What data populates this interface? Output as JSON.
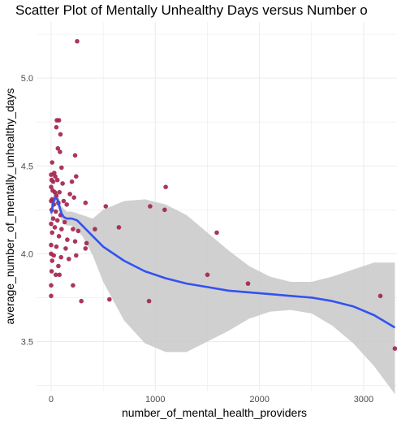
{
  "chart_data": {
    "type": "scatter",
    "title": "Scatter Plot of Mentally Unhealthy Days versus Number o",
    "xlabel": "number_of_mental_health_providers",
    "ylabel": "average_number_of_mentally_unhealthy_days",
    "xlim": [
      -140,
      3320
    ],
    "ylim": [
      3.22,
      5.32
    ],
    "x_ticks": [
      0,
      1000,
      2000,
      3000
    ],
    "x_tick_labels": [
      "0",
      "1000",
      "2000",
      "3000"
    ],
    "y_ticks": [
      3.5,
      4.0,
      4.5,
      5.0
    ],
    "y_tick_labels": [
      "3.5",
      "4.0",
      "4.5",
      "5.0"
    ],
    "grid": true,
    "colors": {
      "points": "#a3254f",
      "smooth": "#3352f0",
      "band": "#c8c8c8",
      "grid": "#ebebeb"
    },
    "points": [
      {
        "x": 250,
        "y": 5.21
      },
      {
        "x": 55,
        "y": 4.76
      },
      {
        "x": 75,
        "y": 4.76
      },
      {
        "x": 50,
        "y": 4.72
      },
      {
        "x": 90,
        "y": 4.68
      },
      {
        "x": 65,
        "y": 4.6
      },
      {
        "x": 85,
        "y": 4.58
      },
      {
        "x": 230,
        "y": 4.56
      },
      {
        "x": 10,
        "y": 4.52
      },
      {
        "x": 100,
        "y": 4.49
      },
      {
        "x": 30,
        "y": 4.46
      },
      {
        "x": 0,
        "y": 4.45
      },
      {
        "x": 5,
        "y": 4.42
      },
      {
        "x": 20,
        "y": 4.41
      },
      {
        "x": 40,
        "y": 4.44
      },
      {
        "x": 60,
        "y": 4.42
      },
      {
        "x": 110,
        "y": 4.4
      },
      {
        "x": 200,
        "y": 4.41
      },
      {
        "x": 240,
        "y": 4.44
      },
      {
        "x": 0,
        "y": 4.38
      },
      {
        "x": 15,
        "y": 4.36
      },
      {
        "x": 35,
        "y": 4.35
      },
      {
        "x": 80,
        "y": 4.35
      },
      {
        "x": 50,
        "y": 4.33
      },
      {
        "x": 10,
        "y": 4.31
      },
      {
        "x": 1100,
        "y": 4.38
      },
      {
        "x": 180,
        "y": 4.34
      },
      {
        "x": 220,
        "y": 4.32
      },
      {
        "x": 0,
        "y": 4.3
      },
      {
        "x": 25,
        "y": 4.28
      },
      {
        "x": 70,
        "y": 4.29
      },
      {
        "x": 120,
        "y": 4.3
      },
      {
        "x": 150,
        "y": 4.28
      },
      {
        "x": 330,
        "y": 4.29
      },
      {
        "x": 525,
        "y": 4.27
      },
      {
        "x": 950,
        "y": 4.27
      },
      {
        "x": 1090,
        "y": 4.25
      },
      {
        "x": 5,
        "y": 4.25
      },
      {
        "x": 45,
        "y": 4.24
      },
      {
        "x": 90,
        "y": 4.22
      },
      {
        "x": 20,
        "y": 4.2
      },
      {
        "x": 60,
        "y": 4.19
      },
      {
        "x": 130,
        "y": 4.18
      },
      {
        "x": 0,
        "y": 4.17
      },
      {
        "x": 35,
        "y": 4.15
      },
      {
        "x": 100,
        "y": 4.14
      },
      {
        "x": 210,
        "y": 4.14
      },
      {
        "x": 260,
        "y": 4.13
      },
      {
        "x": 420,
        "y": 4.14
      },
      {
        "x": 650,
        "y": 4.15
      },
      {
        "x": 1590,
        "y": 4.12
      },
      {
        "x": 10,
        "y": 4.12
      },
      {
        "x": 75,
        "y": 4.1
      },
      {
        "x": 155,
        "y": 4.08
      },
      {
        "x": 230,
        "y": 4.07
      },
      {
        "x": 340,
        "y": 4.06
      },
      {
        "x": 0,
        "y": 4.05
      },
      {
        "x": 50,
        "y": 4.04
      },
      {
        "x": 140,
        "y": 4.03
      },
      {
        "x": 330,
        "y": 4.03
      },
      {
        "x": 0,
        "y": 4.0
      },
      {
        "x": 25,
        "y": 3.99
      },
      {
        "x": 95,
        "y": 3.98
      },
      {
        "x": 170,
        "y": 3.97
      },
      {
        "x": 240,
        "y": 3.99
      },
      {
        "x": 10,
        "y": 3.96
      },
      {
        "x": 70,
        "y": 3.93
      },
      {
        "x": 5,
        "y": 3.9
      },
      {
        "x": 45,
        "y": 3.88
      },
      {
        "x": 80,
        "y": 3.88
      },
      {
        "x": 1500,
        "y": 3.88
      },
      {
        "x": 0,
        "y": 3.82
      },
      {
        "x": 210,
        "y": 3.82
      },
      {
        "x": 1890,
        "y": 3.83
      },
      {
        "x": 0,
        "y": 3.76
      },
      {
        "x": 560,
        "y": 3.74
      },
      {
        "x": 290,
        "y": 3.73
      },
      {
        "x": 940,
        "y": 3.73
      },
      {
        "x": 3160,
        "y": 3.76
      },
      {
        "x": 3300,
        "y": 3.46
      }
    ],
    "smooth_line": {
      "x": [
        0,
        20,
        40,
        60,
        80,
        100,
        120,
        150,
        200,
        250,
        300,
        400,
        500,
        700,
        900,
        1100,
        1300,
        1500,
        1700,
        1900,
        2100,
        2300,
        2500,
        2700,
        2900,
        3100,
        3300
      ],
      "y": [
        4.23,
        4.29,
        4.32,
        4.31,
        4.27,
        4.23,
        4.21,
        4.2,
        4.2,
        4.19,
        4.16,
        4.1,
        4.04,
        3.96,
        3.9,
        3.86,
        3.83,
        3.81,
        3.79,
        3.78,
        3.77,
        3.76,
        3.75,
        3.73,
        3.7,
        3.65,
        3.58
      ]
    },
    "confidence_band": {
      "x": [
        0,
        20,
        40,
        60,
        80,
        100,
        150,
        200,
        300,
        400,
        500,
        700,
        900,
        1100,
        1300,
        1500,
        1700,
        1900,
        2100,
        2300,
        2500,
        2700,
        2900,
        3100,
        3300
      ],
      "upper": [
        4.28,
        4.33,
        4.36,
        4.35,
        4.31,
        4.27,
        4.24,
        4.24,
        4.22,
        4.2,
        4.25,
        4.3,
        4.31,
        4.28,
        4.22,
        4.12,
        4.02,
        3.93,
        3.87,
        3.84,
        3.84,
        3.87,
        3.91,
        3.95,
        3.95
      ],
      "lower": [
        4.18,
        4.25,
        4.28,
        4.27,
        4.23,
        4.19,
        4.16,
        4.16,
        4.1,
        3.99,
        3.84,
        3.62,
        3.49,
        3.44,
        3.44,
        3.5,
        3.56,
        3.63,
        3.67,
        3.68,
        3.66,
        3.59,
        3.49,
        3.36,
        3.2
      ]
    }
  }
}
